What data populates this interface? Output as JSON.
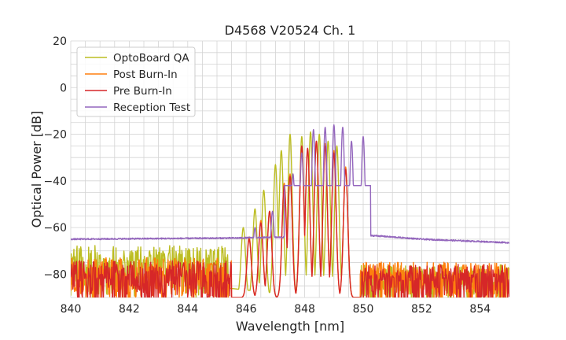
{
  "chart_data": {
    "type": "line",
    "title": "D4568 V20524 Ch. 1",
    "xlabel": "Wavelength [nm]",
    "ylabel": "Optical Power [dB]",
    "xlim": [
      840,
      855
    ],
    "ylim": [
      -90,
      20
    ],
    "xticks": [
      840,
      842,
      844,
      846,
      848,
      850,
      852,
      854
    ],
    "xtick_labels": [
      "840",
      "842",
      "844",
      "846",
      "848",
      "850",
      "852",
      "854"
    ],
    "yticks": [
      20,
      0,
      -20,
      -40,
      -60,
      -80
    ],
    "ytick_labels": [
      "20",
      "0",
      "−20",
      "−40",
      "−60",
      "−80"
    ],
    "grid": true,
    "legend_position": "top-left",
    "series": [
      {
        "name": "OptoBoard QA",
        "color": "#bcbd22",
        "noise_floor": {
          "x_range": [
            840,
            845.4
          ],
          "level": -76,
          "spread": 14
        },
        "peaks": [
          {
            "x": 845.9,
            "y": -60
          },
          {
            "x": 846.3,
            "y": -52
          },
          {
            "x": 846.6,
            "y": -44
          },
          {
            "x": 847.0,
            "y": -33
          },
          {
            "x": 847.2,
            "y": -27
          },
          {
            "x": 847.5,
            "y": -20
          },
          {
            "x": 847.9,
            "y": -21
          },
          {
            "x": 848.2,
            "y": -19
          },
          {
            "x": 848.5,
            "y": -20
          },
          {
            "x": 848.8,
            "y": -23
          },
          {
            "x": 849.1,
            "y": -25
          },
          {
            "x": 849.4,
            "y": -35
          }
        ],
        "noise_floor_after": {
          "x_range": [
            849.9,
            855
          ],
          "level": -82,
          "spread": 10
        }
      },
      {
        "name": "Post Burn-In",
        "color": "#ff7f0e",
        "noise_floor": {
          "x_range": [
            840,
            845.5
          ],
          "level": -80,
          "spread": 12
        },
        "peaks": [
          {
            "x": 846.1,
            "y": -64
          },
          {
            "x": 846.5,
            "y": -57
          },
          {
            "x": 846.8,
            "y": -53
          },
          {
            "x": 847.3,
            "y": -41
          },
          {
            "x": 847.5,
            "y": -37
          },
          {
            "x": 847.9,
            "y": -26
          },
          {
            "x": 848.1,
            "y": -27
          },
          {
            "x": 848.4,
            "y": -23
          },
          {
            "x": 848.7,
            "y": -24
          },
          {
            "x": 849.0,
            "y": -27
          },
          {
            "x": 849.4,
            "y": -34
          }
        ],
        "noise_floor_after": {
          "x_range": [
            849.9,
            855
          ],
          "level": -82,
          "spread": 12
        }
      },
      {
        "name": "Pre Burn-In",
        "color": "#d62728",
        "noise_floor": {
          "x_range": [
            840,
            845.5
          ],
          "level": -82,
          "spread": 13
        },
        "peaks": [
          {
            "x": 846.1,
            "y": -65
          },
          {
            "x": 846.5,
            "y": -58
          },
          {
            "x": 846.8,
            "y": -53
          },
          {
            "x": 847.3,
            "y": -42
          },
          {
            "x": 847.5,
            "y": -38
          },
          {
            "x": 847.9,
            "y": -25
          },
          {
            "x": 848.1,
            "y": -26
          },
          {
            "x": 848.4,
            "y": -23
          },
          {
            "x": 848.7,
            "y": -25
          },
          {
            "x": 849.0,
            "y": -28
          },
          {
            "x": 849.4,
            "y": -35
          }
        ],
        "noise_floor_after": {
          "x_range": [
            849.9,
            855
          ],
          "level": -83,
          "spread": 12
        }
      },
      {
        "name": "Reception Test",
        "color": "#9467bd",
        "baseline": [
          [
            840,
            -65
          ],
          [
            845.6,
            -64.5
          ],
          [
            850.4,
            -63.5
          ],
          [
            852,
            -65
          ],
          [
            855,
            -66.5
          ]
        ],
        "peaks": [
          {
            "x": 846.3,
            "y": -60
          },
          {
            "x": 846.9,
            "y": -53
          },
          {
            "x": 847.6,
            "y": -37
          },
          {
            "x": 847.9,
            "y": -28
          },
          {
            "x": 848.3,
            "y": -18
          },
          {
            "x": 848.7,
            "y": -17
          },
          {
            "x": 849.0,
            "y": -16
          },
          {
            "x": 849.3,
            "y": -17
          },
          {
            "x": 849.6,
            "y": -23
          },
          {
            "x": 850.0,
            "y": -21
          }
        ]
      }
    ]
  }
}
